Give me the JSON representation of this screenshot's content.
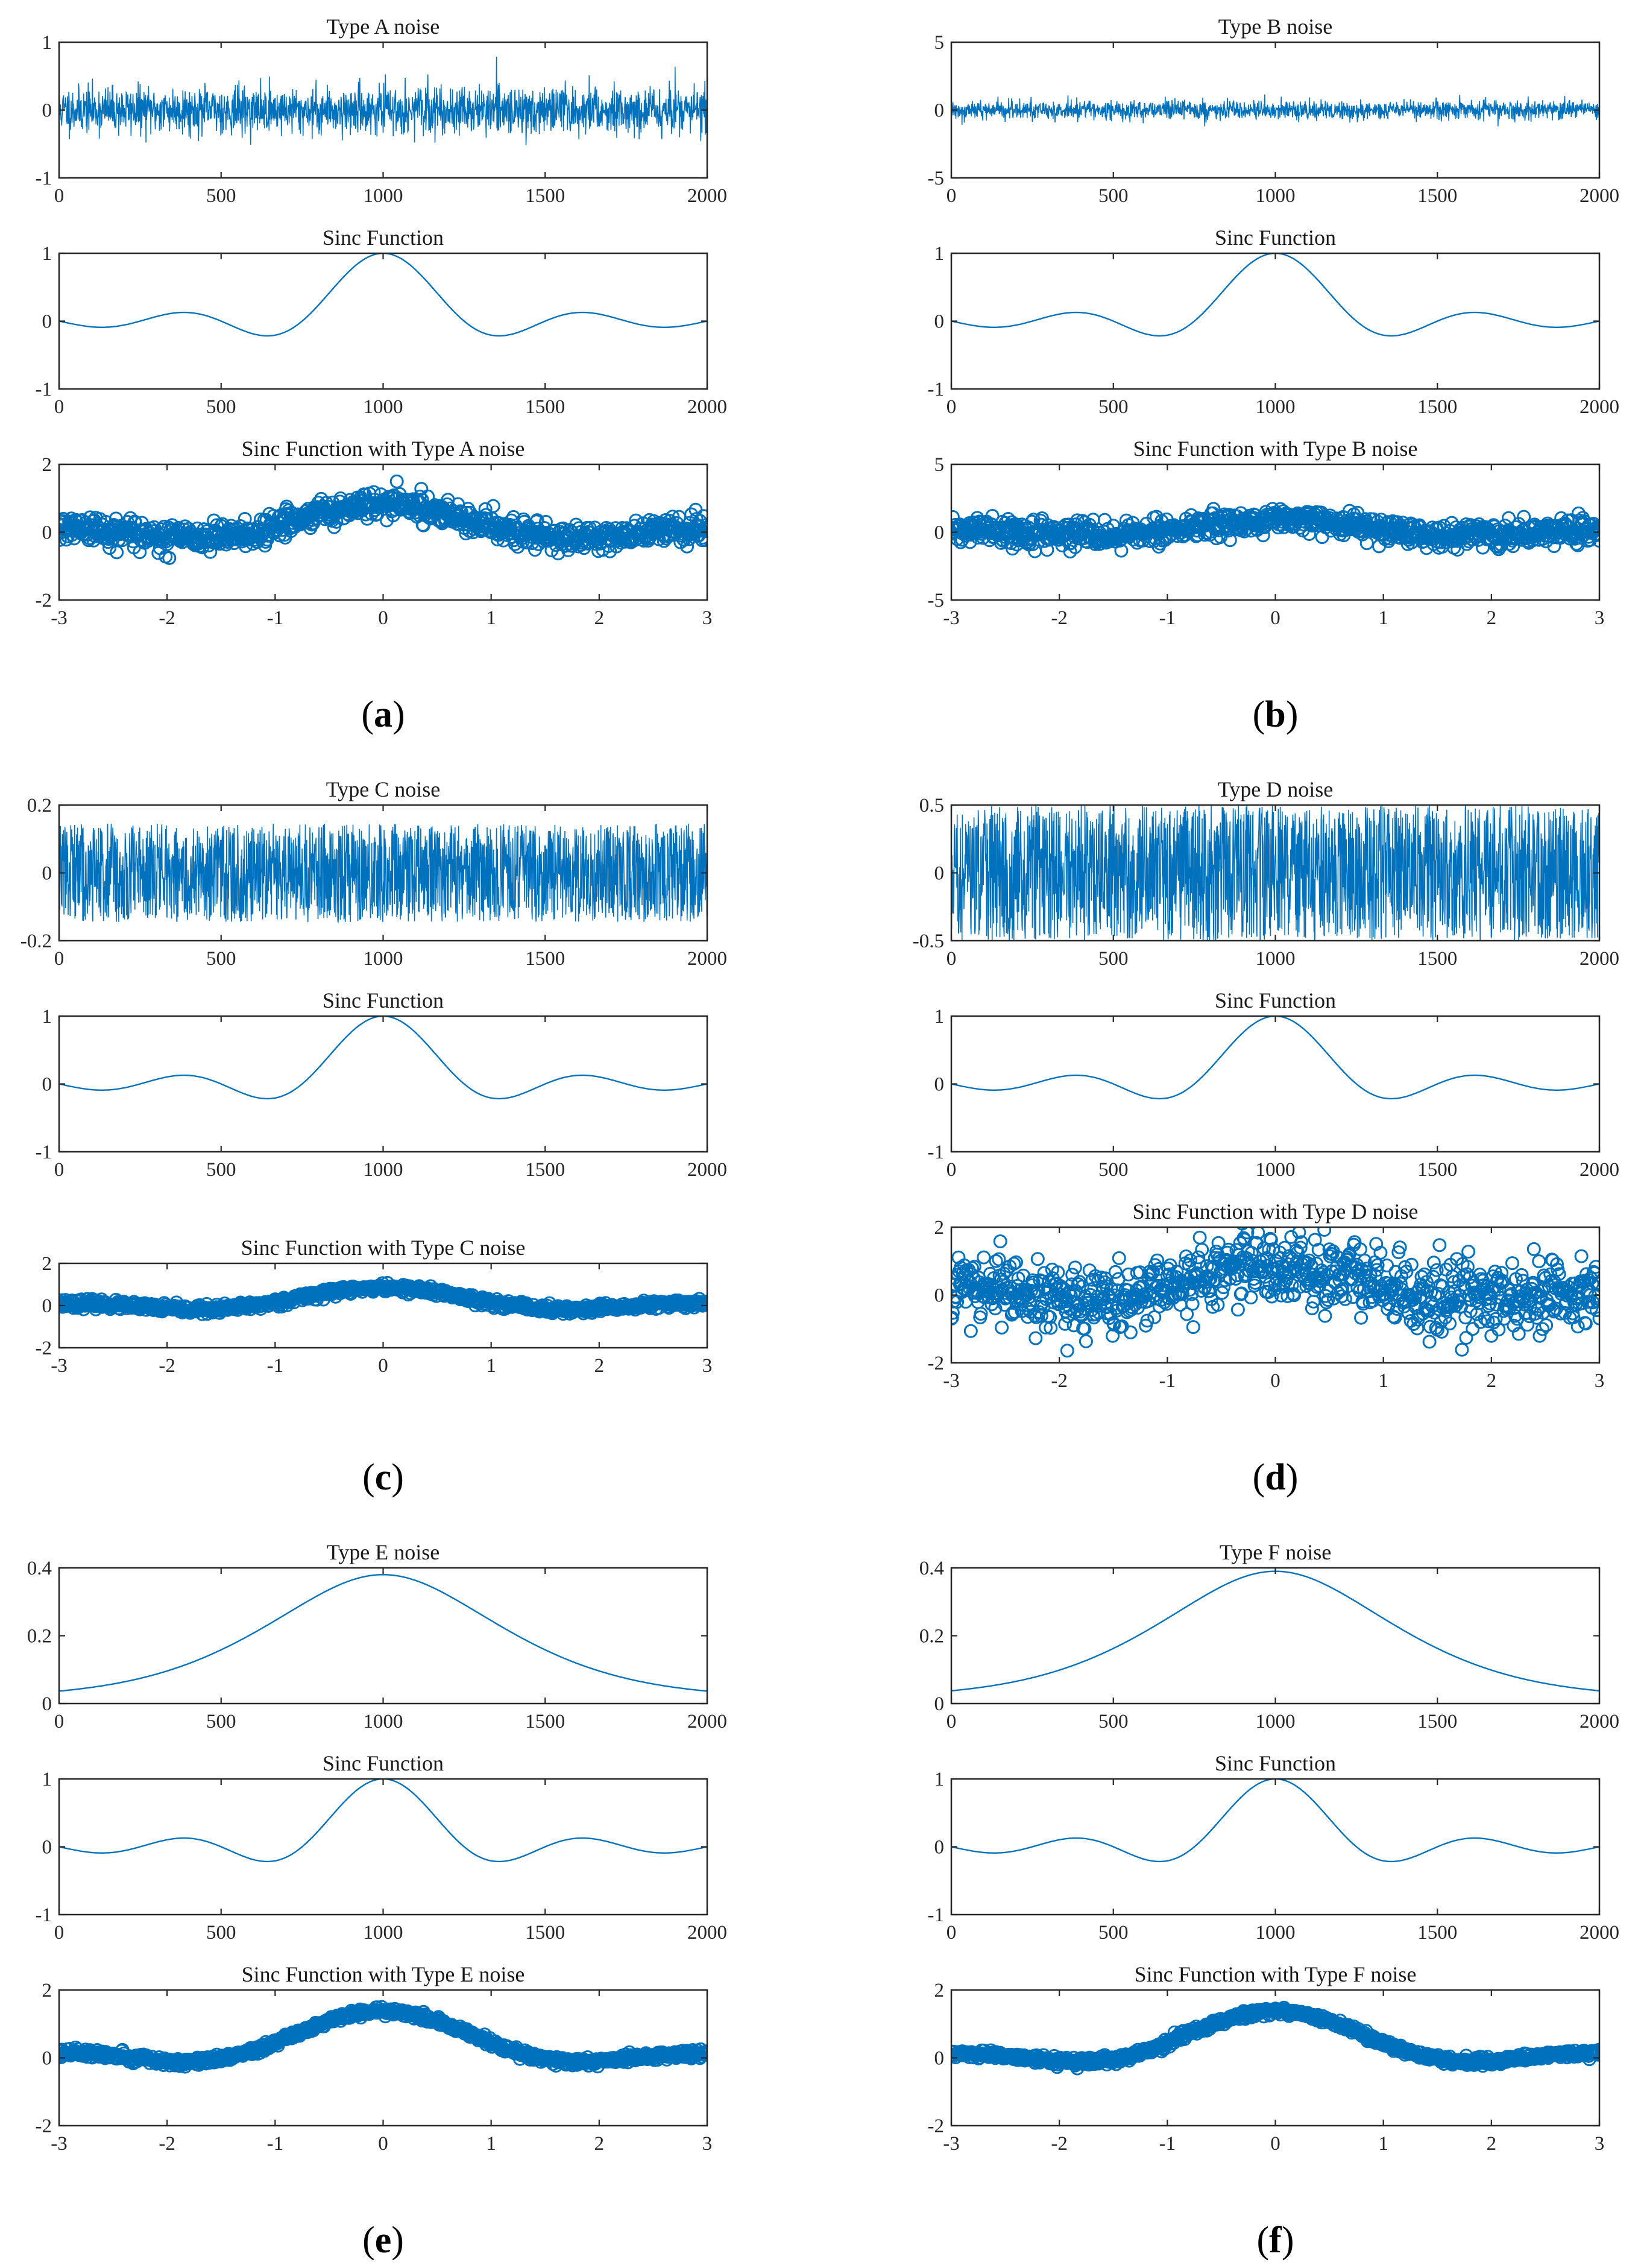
{
  "colors": {
    "line": "#0072BD",
    "axis": "#262626",
    "text": "#1a1a1a"
  },
  "chart_data": [
    {
      "panel": "a",
      "panel_label": "(a)",
      "subplots": [
        {
          "type": "line",
          "title": "Type A noise",
          "signal": "noise",
          "noise_amp": 0.17,
          "seed": 11,
          "x": {
            "min": 0,
            "max": 2000,
            "ticks": [
              0,
              500,
              1000,
              1500,
              2000
            ]
          },
          "y": {
            "min": -1,
            "max": 1,
            "ticks": [
              -1,
              0,
              1
            ]
          }
        },
        {
          "type": "line",
          "title": "Sinc Function",
          "signal": "sinc",
          "x": {
            "min": 0,
            "max": 2000,
            "ticks": [
              0,
              500,
              1000,
              1500,
              2000
            ]
          },
          "y": {
            "min": -1,
            "max": 1,
            "ticks": [
              -1,
              0,
              1
            ]
          }
        },
        {
          "type": "scatter",
          "title": "Sinc Function with Type A noise",
          "signal": "sinc+noise",
          "noise_amp": 0.2,
          "seed": 21,
          "x": {
            "min": -3,
            "max": 3,
            "ticks": [
              -3,
              -2,
              -1,
              0,
              1,
              2,
              3
            ]
          },
          "y": {
            "min": -2,
            "max": 2,
            "ticks": [
              -2,
              0,
              2
            ]
          }
        }
      ]
    },
    {
      "panel": "b",
      "panel_label": "(b)",
      "subplots": [
        {
          "type": "line",
          "title": "Type B noise",
          "signal": "noise",
          "noise_amp": 0.35,
          "seed": 12,
          "x": {
            "min": 0,
            "max": 2000,
            "ticks": [
              0,
              500,
              1000,
              1500,
              2000
            ]
          },
          "y": {
            "min": -5,
            "max": 5,
            "ticks": [
              -5,
              0,
              5
            ]
          }
        },
        {
          "type": "line",
          "title": "Sinc Function",
          "signal": "sinc",
          "x": {
            "min": 0,
            "max": 2000,
            "ticks": [
              0,
              500,
              1000,
              1500,
              2000
            ]
          },
          "y": {
            "min": -1,
            "max": 1,
            "ticks": [
              -1,
              0,
              1
            ]
          }
        },
        {
          "type": "scatter",
          "title": "Sinc Function with Type B noise",
          "signal": "sinc+noise",
          "noise_amp": 0.45,
          "seed": 22,
          "x": {
            "min": -3,
            "max": 3,
            "ticks": [
              -3,
              -2,
              -1,
              0,
              1,
              2,
              3
            ]
          },
          "y": {
            "min": -5,
            "max": 5,
            "ticks": [
              -5,
              0,
              5
            ]
          }
        }
      ]
    },
    {
      "panel": "c",
      "panel_label": "(c)",
      "subplots": [
        {
          "type": "line",
          "title": "Type C noise",
          "signal": "noise",
          "noise_amp": 0.14,
          "seed": 13,
          "x": {
            "min": 0,
            "max": 2000,
            "ticks": [
              0,
              500,
              1000,
              1500,
              2000
            ]
          },
          "y": {
            "min": -0.2,
            "max": 0.2,
            "ticks": [
              -0.2,
              0,
              0.2
            ]
          }
        },
        {
          "type": "line",
          "title": "Sinc Function",
          "signal": "sinc",
          "x": {
            "min": 0,
            "max": 2000,
            "ticks": [
              0,
              500,
              1000,
              1500,
              2000
            ]
          },
          "y": {
            "min": -1,
            "max": 1,
            "ticks": [
              -1,
              0,
              1
            ]
          }
        },
        {
          "type": "scatter",
          "title": "Sinc Function with Type C noise",
          "signal": "sinc+noise",
          "noise_amp": 0.1,
          "seed": 23,
          "x": {
            "min": -3,
            "max": 3,
            "ticks": [
              -3,
              -2,
              -1,
              0,
              1,
              2,
              3
            ]
          },
          "y": {
            "min": -2,
            "max": 2,
            "ticks": [
              -2,
              0,
              2
            ]
          }
        }
      ]
    },
    {
      "panel": "d",
      "panel_label": "(d)",
      "subplots": [
        {
          "type": "line",
          "title": "Type D noise",
          "signal": "noise",
          "noise_amp": 0.5,
          "seed": 14,
          "x": {
            "min": 0,
            "max": 2000,
            "ticks": [
              0,
              500,
              1000,
              1500,
              2000
            ]
          },
          "y": {
            "min": -0.5,
            "max": 0.5,
            "ticks": [
              -0.5,
              0,
              0.5
            ]
          }
        },
        {
          "type": "line",
          "title": "Sinc Function",
          "signal": "sinc",
          "x": {
            "min": 0,
            "max": 2000,
            "ticks": [
              0,
              500,
              1000,
              1500,
              2000
            ]
          },
          "y": {
            "min": -1,
            "max": 1,
            "ticks": [
              -1,
              0,
              1
            ]
          }
        },
        {
          "type": "scatter",
          "title": "Sinc Function with Type D noise",
          "signal": "sinc+noise",
          "noise_amp": 0.5,
          "seed": 24,
          "x": {
            "min": -3,
            "max": 3,
            "ticks": [
              -3,
              -2,
              -1,
              0,
              1,
              2,
              3
            ]
          },
          "y": {
            "min": -2,
            "max": 2,
            "ticks": [
              -2,
              0,
              2
            ]
          }
        }
      ]
    },
    {
      "panel": "e",
      "panel_label": "(e)",
      "subplots": [
        {
          "type": "line",
          "title": "Type E noise",
          "signal": "gauss",
          "peak": 0.38,
          "x": {
            "min": 0,
            "max": 2000,
            "ticks": [
              0,
              500,
              1000,
              1500,
              2000
            ]
          },
          "y": {
            "min": 0,
            "max": 0.4,
            "ticks": [
              0,
              0.2,
              0.4
            ]
          }
        },
        {
          "type": "line",
          "title": "Sinc Function",
          "signal": "sinc",
          "x": {
            "min": 0,
            "max": 2000,
            "ticks": [
              0,
              500,
              1000,
              1500,
              2000
            ]
          },
          "y": {
            "min": -1,
            "max": 1,
            "ticks": [
              -1,
              0,
              1
            ]
          }
        },
        {
          "type": "scatter",
          "title": "Sinc Function with Type E noise",
          "signal": "sinc+gauss",
          "noise_amp": 0.06,
          "seed": 25,
          "x": {
            "min": -3,
            "max": 3,
            "ticks": [
              -3,
              -2,
              -1,
              0,
              1,
              2,
              3
            ]
          },
          "y": {
            "min": -2,
            "max": 2,
            "ticks": [
              -2,
              0,
              2
            ]
          }
        }
      ]
    },
    {
      "panel": "f",
      "panel_label": "(f)",
      "subplots": [
        {
          "type": "line",
          "title": "Type F noise",
          "signal": "gauss",
          "peak": 0.39,
          "x": {
            "min": 0,
            "max": 2000,
            "ticks": [
              0,
              500,
              1000,
              1500,
              2000
            ]
          },
          "y": {
            "min": 0,
            "max": 0.4,
            "ticks": [
              0,
              0.2,
              0.4
            ]
          }
        },
        {
          "type": "line",
          "title": "Sinc Function",
          "signal": "sinc",
          "x": {
            "min": 0,
            "max": 2000,
            "ticks": [
              0,
              500,
              1000,
              1500,
              2000
            ]
          },
          "y": {
            "min": -1,
            "max": 1,
            "ticks": [
              -1,
              0,
              1
            ]
          }
        },
        {
          "type": "scatter",
          "title": "Sinc Function with Type F noise",
          "signal": "sinc+gauss",
          "noise_amp": 0.06,
          "seed": 26,
          "x": {
            "min": -3,
            "max": 3,
            "ticks": [
              -3,
              -2,
              -1,
              0,
              1,
              2,
              3
            ]
          },
          "y": {
            "min": -2,
            "max": 2,
            "ticks": [
              -2,
              0,
              2
            ]
          }
        }
      ]
    }
  ]
}
